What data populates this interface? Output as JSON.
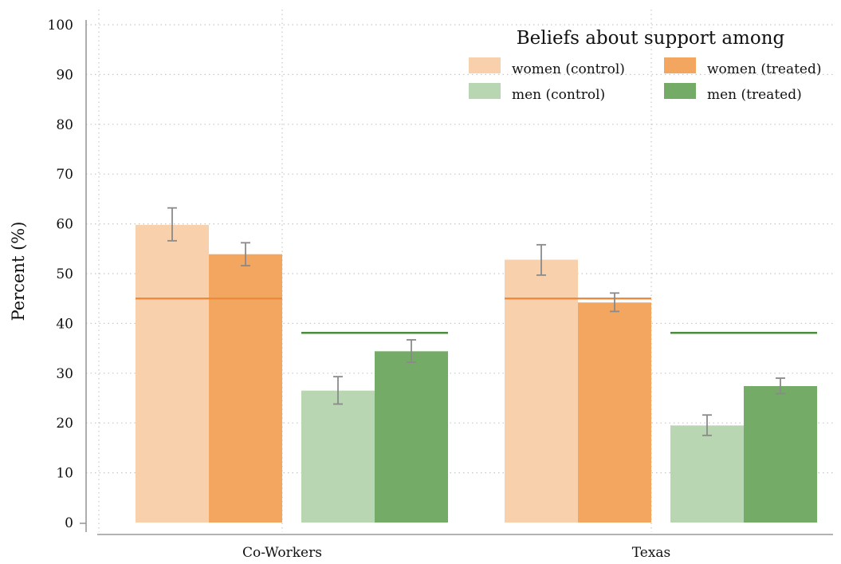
{
  "chart_data": {
    "type": "bar",
    "title": "",
    "ylabel": "Percent (%)",
    "xlabel": "",
    "ylim": [
      0,
      100
    ],
    "yticks": [
      0,
      10,
      20,
      30,
      40,
      50,
      60,
      70,
      80,
      90,
      100
    ],
    "grid": true,
    "categories": [
      "Co-Workers",
      "Texas"
    ],
    "legend": {
      "title": "Beliefs about support among",
      "placement": "top-right",
      "entries": [
        "women (control)",
        "women (treated)",
        "men (control)",
        "men (treated)"
      ]
    },
    "series": [
      {
        "name": "women (control)",
        "color": "#f8d0ac",
        "values": [
          59.8,
          52.8
        ],
        "ci_low": [
          56.6,
          49.7
        ],
        "ci_high": [
          63.2,
          55.8
        ]
      },
      {
        "name": "women (treated)",
        "color": "#f2a65f",
        "values": [
          53.9,
          44.2
        ],
        "ci_low": [
          51.6,
          42.4
        ],
        "ci_high": [
          56.2,
          46.1
        ]
      },
      {
        "name": "men (control)",
        "color": "#b9d6b3",
        "values": [
          26.5,
          19.5
        ],
        "ci_low": [
          23.8,
          17.5
        ],
        "ci_high": [
          29.3,
          21.6
        ]
      },
      {
        "name": "men (treated)",
        "color": "#73ab67",
        "values": [
          34.4,
          27.4
        ],
        "ci_low": [
          32.2,
          25.9
        ],
        "ci_high": [
          36.7,
          29.0
        ]
      }
    ],
    "reference_lines": [
      {
        "group": "women",
        "color": "#ef8a3a",
        "values": [
          45.0,
          45.0
        ]
      },
      {
        "group": "men",
        "color": "#4d8c3c",
        "values": [
          38.1,
          38.1
        ]
      }
    ]
  }
}
